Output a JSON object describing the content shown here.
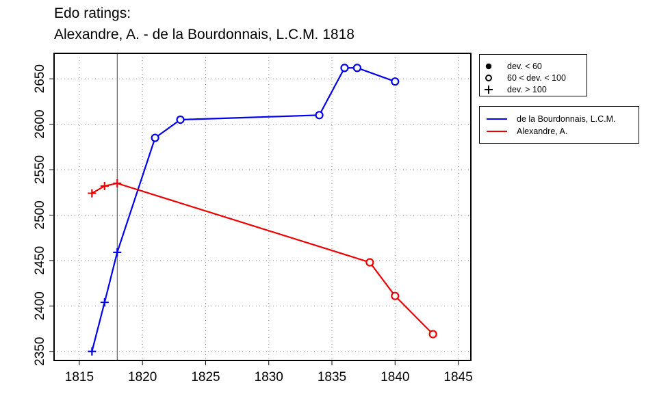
{
  "title": "Edo ratings:",
  "subtitle": "Alexandre, A. - de la Bourdonnais, L.C.M. 1818",
  "legend_deviation": [
    {
      "label": "dev. < 60",
      "symbol": "filled-circle"
    },
    {
      "label": "60 < dev. < 100",
      "symbol": "open-circle"
    },
    {
      "label": "dev. > 100",
      "symbol": "plus"
    }
  ],
  "legend_players": [
    {
      "label": "de la Bourdonnais, L.C.M.",
      "color": "#0000ee"
    },
    {
      "label": "Alexandre, A.",
      "color": "#ee0000"
    }
  ],
  "chart_data": {
    "type": "line",
    "xlim": [
      1813,
      1846
    ],
    "ylim": [
      2340,
      2678
    ],
    "xticks": [
      1815,
      1820,
      1825,
      1830,
      1835,
      1840,
      1845
    ],
    "yticks": [
      2350,
      2400,
      2450,
      2500,
      2550,
      2600,
      2650
    ],
    "grid": true,
    "reference_x": 1818,
    "legend_position": "outside-right",
    "series": [
      {
        "name": "de la Bourdonnais, L.C.M.",
        "color": "#0000ee",
        "points": [
          {
            "x": 1816,
            "y": 2350,
            "marker": "plus"
          },
          {
            "x": 1817,
            "y": 2404,
            "marker": "plus"
          },
          {
            "x": 1818,
            "y": 2459,
            "marker": "plus"
          },
          {
            "x": 1821,
            "y": 2585,
            "marker": "open-circle"
          },
          {
            "x": 1823,
            "y": 2605,
            "marker": "open-circle"
          },
          {
            "x": 1834,
            "y": 2610,
            "marker": "open-circle"
          },
          {
            "x": 1836,
            "y": 2662,
            "marker": "open-circle"
          },
          {
            "x": 1837,
            "y": 2662,
            "marker": "open-circle"
          },
          {
            "x": 1840,
            "y": 2647,
            "marker": "open-circle"
          }
        ]
      },
      {
        "name": "Alexandre, A.",
        "color": "#ee0000",
        "points": [
          {
            "x": 1816,
            "y": 2524,
            "marker": "plus"
          },
          {
            "x": 1817,
            "y": 2532,
            "marker": "plus"
          },
          {
            "x": 1818,
            "y": 2535,
            "marker": "plus"
          },
          {
            "x": 1838,
            "y": 2448,
            "marker": "open-circle"
          },
          {
            "x": 1840,
            "y": 2411,
            "marker": "open-circle"
          },
          {
            "x": 1843,
            "y": 2369,
            "marker": "open-circle"
          }
        ]
      }
    ]
  }
}
